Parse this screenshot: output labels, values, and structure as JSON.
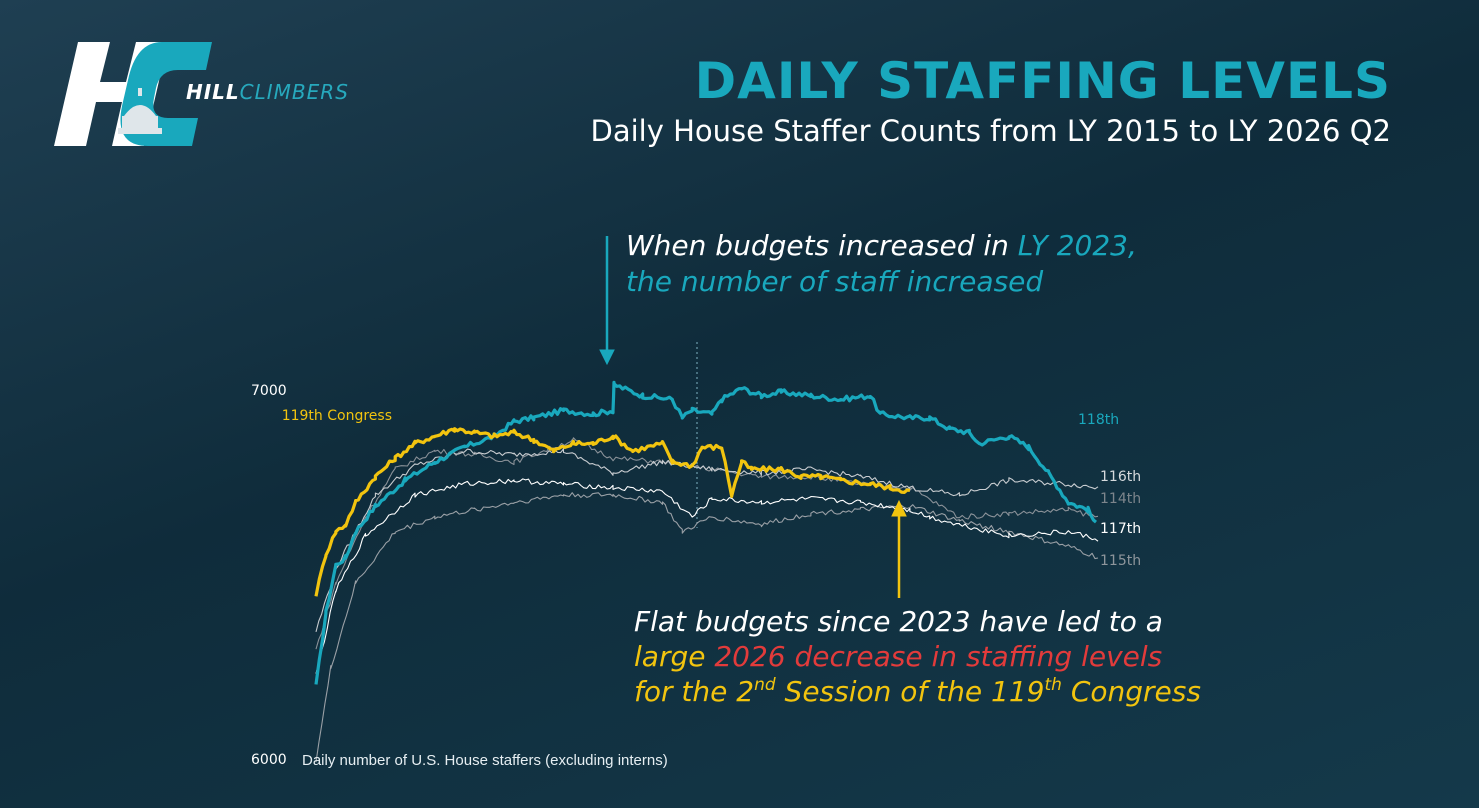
{
  "logo": {
    "part1": "HILL",
    "part2": "CLIMBERS"
  },
  "header": {
    "title": "DAILY STAFFING LEVELS",
    "subtitle": "Daily House Staffer Counts from LY 2015 to LY 2026 Q2"
  },
  "annotations": {
    "top": {
      "line1_a": "When budgets increased in ",
      "line1_b": "LY 2023,",
      "line2": "the number of staff increased"
    },
    "bottom": {
      "line1": "Flat budgets since 2023 have led to a",
      "line2_a": "large ",
      "line2_b": "2026 decrease in staffing levels",
      "line3_a": "for the 2",
      "line3_sup1": "nd",
      "line3_b": " Session of the 119",
      "line3_sup2": "th",
      "line3_c": " Congress"
    }
  },
  "colors": {
    "teal": "#19a8bd",
    "gold": "#f2c40f",
    "red": "#e23b3b"
  },
  "chart_data": {
    "type": "line",
    "title": "DAILY STAFFING LEVELS",
    "subtitle": "Daily House Staffer Counts from LY 2015 to LY 2026 Q2",
    "ylabel": "Daily number of U.S. House staffers (excluding interns)",
    "y_tick_labels": [
      "7000",
      "6000"
    ],
    "ylim": [
      6000,
      7000
    ],
    "x_unit": "day of two-year Congress (0-730)",
    "grid": false,
    "legend": "direct labels at line ends",
    "series": [
      {
        "name": "118th",
        "color": "#19a8bd",
        "points": [
          [
            0,
            6200
          ],
          [
            10,
            6400
          ],
          [
            20,
            6530
          ],
          [
            30,
            6550
          ],
          [
            40,
            6620
          ],
          [
            60,
            6690
          ],
          [
            90,
            6760
          ],
          [
            120,
            6810
          ],
          [
            150,
            6850
          ],
          [
            180,
            6880
          ],
          [
            200,
            6920
          ],
          [
            220,
            6930
          ],
          [
            250,
            6950
          ],
          [
            280,
            6940
          ],
          [
            300,
            6950
          ],
          [
            301,
            7020
          ],
          [
            330,
            6990
          ],
          [
            360,
            6980
          ],
          [
            370,
            6930
          ],
          [
            380,
            6950
          ],
          [
            400,
            6940
          ],
          [
            410,
            6980
          ],
          [
            430,
            7010
          ],
          [
            450,
            6990
          ],
          [
            470,
            7000
          ],
          [
            500,
            6990
          ],
          [
            530,
            6980
          ],
          [
            560,
            6990
          ],
          [
            570,
            6940
          ],
          [
            600,
            6930
          ],
          [
            620,
            6930
          ],
          [
            640,
            6900
          ],
          [
            660,
            6890
          ],
          [
            670,
            6860
          ],
          [
            700,
            6880
          ],
          [
            720,
            6850
          ],
          [
            740,
            6780
          ],
          [
            760,
            6700
          ],
          [
            780,
            6680
          ],
          [
            788,
            6640
          ]
        ]
      },
      {
        "name": "119th Congress",
        "color": "#f2c40f",
        "points": [
          [
            0,
            6450
          ],
          [
            10,
            6560
          ],
          [
            20,
            6620
          ],
          [
            30,
            6640
          ],
          [
            40,
            6700
          ],
          [
            60,
            6770
          ],
          [
            80,
            6820
          ],
          [
            100,
            6860
          ],
          [
            120,
            6880
          ],
          [
            140,
            6900
          ],
          [
            160,
            6890
          ],
          [
            180,
            6880
          ],
          [
            200,
            6890
          ],
          [
            220,
            6870
          ],
          [
            240,
            6840
          ],
          [
            260,
            6860
          ],
          [
            280,
            6860
          ],
          [
            300,
            6880
          ],
          [
            320,
            6840
          ],
          [
            350,
            6860
          ],
          [
            360,
            6810
          ],
          [
            380,
            6800
          ],
          [
            390,
            6850
          ],
          [
            410,
            6850
          ],
          [
            420,
            6720
          ],
          [
            430,
            6810
          ],
          [
            440,
            6790
          ],
          [
            470,
            6790
          ],
          [
            490,
            6770
          ],
          [
            510,
            6770
          ],
          [
            530,
            6760
          ],
          [
            560,
            6750
          ],
          [
            580,
            6740
          ],
          [
            600,
            6730
          ]
        ]
      },
      {
        "name": "116th",
        "color": "#c8ccd0",
        "points": [
          [
            0,
            6350
          ],
          [
            20,
            6520
          ],
          [
            40,
            6620
          ],
          [
            60,
            6720
          ],
          [
            100,
            6800
          ],
          [
            150,
            6840
          ],
          [
            200,
            6830
          ],
          [
            250,
            6840
          ],
          [
            300,
            6780
          ],
          [
            350,
            6810
          ],
          [
            400,
            6790
          ],
          [
            450,
            6780
          ],
          [
            500,
            6790
          ],
          [
            550,
            6770
          ],
          [
            600,
            6740
          ],
          [
            650,
            6720
          ],
          [
            700,
            6760
          ],
          [
            760,
            6750
          ],
          [
            790,
            6740
          ]
        ]
      },
      {
        "name": "114th",
        "color": "#8a9198",
        "points": [
          [
            0,
            6300
          ],
          [
            20,
            6480
          ],
          [
            50,
            6660
          ],
          [
            80,
            6790
          ],
          [
            120,
            6840
          ],
          [
            160,
            6830
          ],
          [
            200,
            6810
          ],
          [
            260,
            6870
          ],
          [
            300,
            6820
          ],
          [
            350,
            6810
          ],
          [
            400,
            6790
          ],
          [
            450,
            6770
          ],
          [
            500,
            6770
          ],
          [
            550,
            6750
          ],
          [
            600,
            6740
          ],
          [
            650,
            6660
          ],
          [
            700,
            6670
          ],
          [
            760,
            6680
          ],
          [
            790,
            6660
          ]
        ]
      },
      {
        "name": "117th",
        "color": "#ffffff",
        "points": [
          [
            0,
            6230
          ],
          [
            20,
            6460
          ],
          [
            50,
            6610
          ],
          [
            100,
            6720
          ],
          [
            150,
            6750
          ],
          [
            200,
            6760
          ],
          [
            250,
            6750
          ],
          [
            300,
            6740
          ],
          [
            350,
            6730
          ],
          [
            380,
            6660
          ],
          [
            400,
            6710
          ],
          [
            450,
            6700
          ],
          [
            500,
            6710
          ],
          [
            550,
            6700
          ],
          [
            600,
            6680
          ],
          [
            620,
            6660
          ],
          [
            650,
            6640
          ],
          [
            700,
            6610
          ],
          [
            760,
            6620
          ],
          [
            790,
            6600
          ]
        ]
      },
      {
        "name": "115th",
        "color": "#9aa0a6",
        "points": [
          [
            0,
            6000
          ],
          [
            15,
            6250
          ],
          [
            40,
            6480
          ],
          [
            80,
            6620
          ],
          [
            120,
            6660
          ],
          [
            160,
            6680
          ],
          [
            200,
            6700
          ],
          [
            250,
            6720
          ],
          [
            300,
            6720
          ],
          [
            350,
            6700
          ],
          [
            370,
            6620
          ],
          [
            400,
            6660
          ],
          [
            450,
            6640
          ],
          [
            500,
            6670
          ],
          [
            550,
            6680
          ],
          [
            600,
            6690
          ],
          [
            650,
            6650
          ],
          [
            700,
            6620
          ],
          [
            760,
            6580
          ],
          [
            790,
            6550
          ]
        ]
      }
    ],
    "markers": [
      {
        "label": "LY 2023 budget increase",
        "x": 300
      },
      {
        "label": "2026 decrease",
        "x": 590
      }
    ]
  }
}
